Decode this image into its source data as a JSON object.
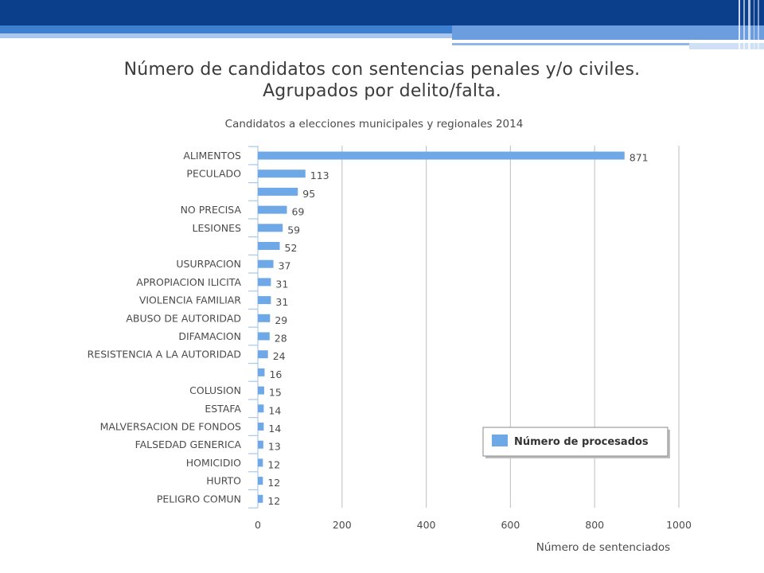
{
  "slide": {
    "title_line1": "Número de candidatos con sentencias penales y/o civiles.",
    "title_line2": "Agrupados por delito/falta."
  },
  "colors": {
    "header_dark": "#0b3f8c",
    "header_light": "#3f7fd0",
    "bar": "#6fa8e6",
    "grid": "#c8c8c8",
    "axis_ticks": "#a9c7ec",
    "text": "#4b4b4b"
  },
  "chart_data": {
    "type": "bar",
    "orientation": "horizontal",
    "title": "Candidatos a elecciones municipales y regionales 2014",
    "xlabel": "Número de sentenciados",
    "ylabel": "",
    "xlim": [
      0,
      1000
    ],
    "xticks": [
      "0",
      "200",
      "400",
      "600",
      "800",
      "1000"
    ],
    "grid": true,
    "legend": {
      "position": "bottom-right",
      "entries": [
        "Número de procesados"
      ]
    },
    "categories": [
      "ALIMENTOS",
      "PECULADO",
      "",
      "NO PRECISA",
      "LESIONES",
      "",
      "USURPACION",
      "APROPIACION ILICITA",
      "VIOLENCIA FAMILIAR",
      "ABUSO DE AUTORIDAD",
      "DIFAMACION",
      "RESISTENCIA A LA AUTORIDAD",
      "",
      "COLUSION",
      "ESTAFA",
      "MALVERSACION DE FONDOS",
      "FALSEDAD GENERICA",
      "HOMICIDIO",
      "HURTO",
      "PELIGRO COMUN"
    ],
    "series": [
      {
        "name": "Número de procesados",
        "values": [
          871,
          113,
          95,
          69,
          59,
          52,
          37,
          31,
          31,
          29,
          28,
          24,
          16,
          15,
          14,
          14,
          13,
          12,
          12,
          12
        ]
      }
    ]
  }
}
